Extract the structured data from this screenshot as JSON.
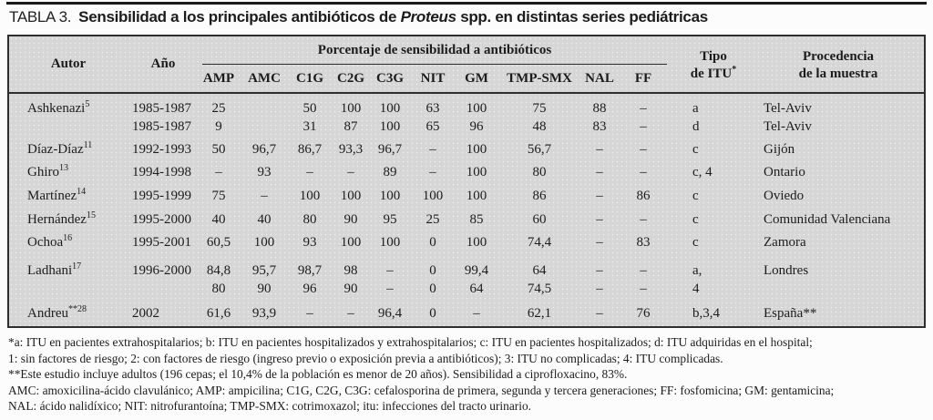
{
  "title": {
    "label": "TABLA 3.",
    "text_before_italic": "Sensibilidad a los principales antibióticos de ",
    "italic": "Proteus",
    "text_after_italic": " spp. en distintas series pediátricas"
  },
  "table": {
    "headers": {
      "autor": "Autor",
      "ano": "Año",
      "group": "Porcentaje de sensibilidad a antibióticos",
      "antibiotics": [
        "AMP",
        "AMC",
        "C1G",
        "C2G",
        "C3G",
        "NIT",
        "GM",
        "TMP-SMX",
        "NAL",
        "FF"
      ],
      "tipo_line1": "Tipo",
      "tipo_line2": "de ITU",
      "tipo_sup": "*",
      "proc_line1": "Procedencia",
      "proc_line2": "de la muestra"
    },
    "rows": [
      {
        "author": "Ashkenazi",
        "ref": "5",
        "year": "1985-1987",
        "values": [
          "25",
          "",
          "50",
          "100",
          "100",
          "63",
          "100",
          "75",
          "88",
          "–"
        ],
        "tipo": "a",
        "origin": "Tel-Aviv"
      },
      {
        "author": "",
        "ref": "",
        "year": "1985-1987",
        "values": [
          "9",
          "",
          "31",
          "87",
          "100",
          "65",
          "96",
          "48",
          "83",
          "–"
        ],
        "tipo": "d",
        "origin": "Tel-Aviv"
      },
      {
        "author": "Díaz-Díaz",
        "ref": "11",
        "year": "1992-1993",
        "values": [
          "50",
          "96,7",
          "86,7",
          "93,3",
          "96,7",
          "–",
          "100",
          "56,7",
          "–",
          "–"
        ],
        "tipo": "c",
        "origin": "Gijón"
      },
      {
        "author": "Ghiro",
        "ref": "13",
        "year": "1994-1998",
        "values": [
          "–",
          "93",
          "–",
          "–",
          "89",
          "–",
          "100",
          "80",
          "–",
          "–"
        ],
        "tipo": "c, 4",
        "origin": "Ontario"
      },
      {
        "author": "Martínez",
        "ref": "14",
        "year": "1995-1999",
        "values": [
          "75",
          "–",
          "100",
          "100",
          "100",
          "100",
          "100",
          "86",
          "–",
          "86"
        ],
        "tipo": "c",
        "origin": "Oviedo"
      },
      {
        "author": "Hernández",
        "ref": "15",
        "year": "1995-2000",
        "values": [
          "40",
          "40",
          "80",
          "90",
          "95",
          "25",
          "85",
          "60",
          "–",
          "–"
        ],
        "tipo": "c",
        "origin": "Comunidad Valenciana"
      },
      {
        "author": "Ochoa",
        "ref": "16",
        "year": "1995-2001",
        "values": [
          "60,5",
          "100",
          "93",
          "100",
          "100",
          "0",
          "100",
          "74,4",
          "–",
          "83"
        ],
        "tipo": "c",
        "origin": "Zamora"
      },
      {
        "author": "Ladhani",
        "ref": "17",
        "year": "1996-2000",
        "values": [
          "84,8",
          "95,7",
          "98,7",
          "98",
          "–",
          "0",
          "99,4",
          "64",
          "–",
          "–"
        ],
        "tipo": "a,",
        "origin": "Londres"
      },
      {
        "author": "",
        "ref": "",
        "year": "",
        "values": [
          "80",
          "90",
          "96",
          "90",
          "–",
          "0",
          "64",
          "74,5",
          "–",
          "–"
        ],
        "tipo": "4",
        "origin": ""
      },
      {
        "author": "Andreu",
        "ref": "**28",
        "year": "2002",
        "values": [
          "61,6",
          "93,9",
          "–",
          "–",
          "96,4",
          "0",
          "–",
          "62,1",
          "–",
          "76"
        ],
        "tipo": "b,3,4",
        "origin": "España**"
      }
    ]
  },
  "footnotes": [
    "*a: ITU en pacientes extrahospitalarios; b: ITU en pacientes hospitalizados y extrahospitalarios; c: ITU en pacientes hospitalizados; d: ITU adquiridas en el hospital;",
    "1: sin factores de riesgo; 2: con factores de riesgo (ingreso previo o exposición previa a antibióticos); 3: ITU no complicadas; 4: ITU complicadas.",
    "**Este estudio incluye adultos (196 cepas; el 10,4% de la población es menor de 20 años). Sensibilidad a ciprofloxacino, 83%.",
    "AMC: amoxicilina-ácido clavulánico; AMP: ampicilina; C1G, C2G, C3G: cefalosporina de primera, segunda y tercera generaciones; FF: fosfomicina; GM: gentamicina;",
    "NAL: ácido nalidíxico; NIT: nitrofurantoína; TMP-SMX: cotrimoxazol; itu: infecciones del tracto urinario."
  ]
}
